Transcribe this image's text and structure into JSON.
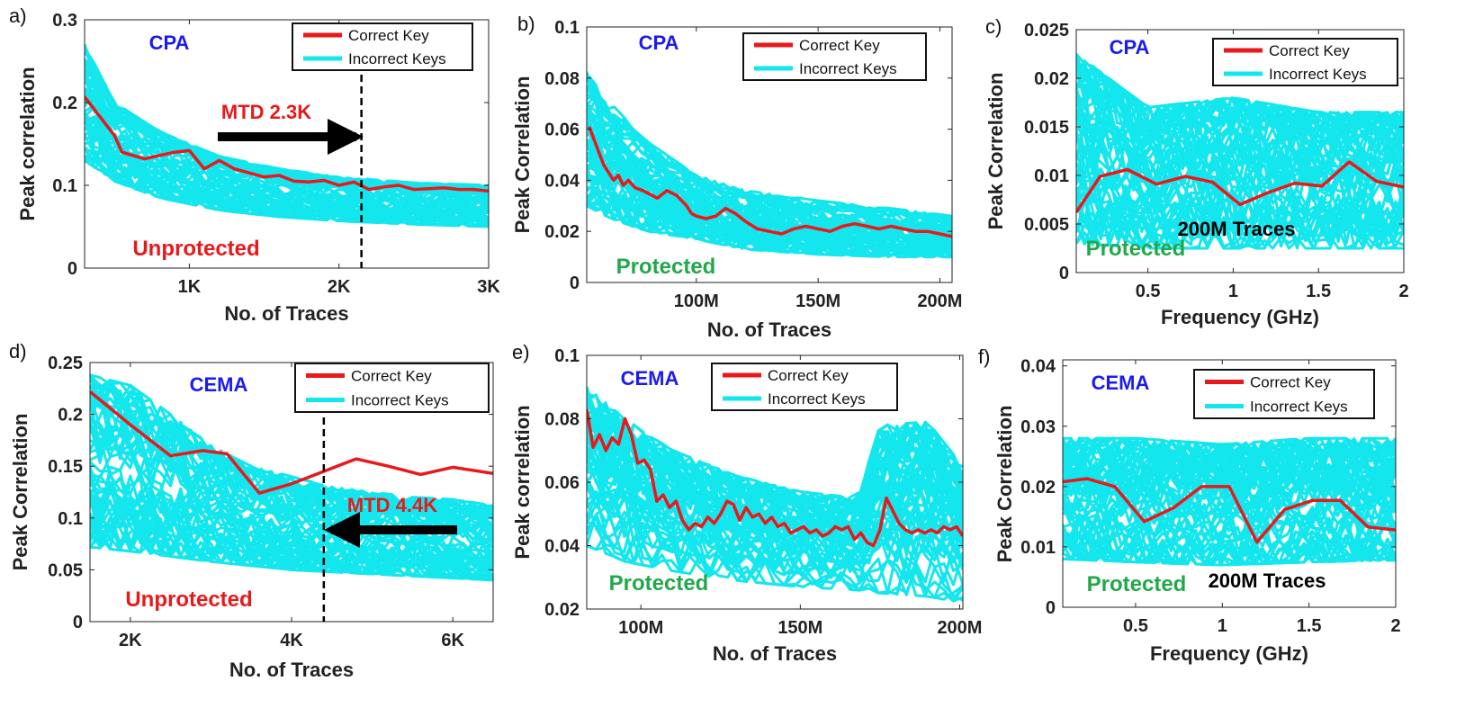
{
  "colors": {
    "correct": "#e8191b",
    "incorrect": "#14e6ee",
    "label_blue": "#1b1bf0",
    "label_red": "#e8191b",
    "label_green": "#21a84a",
    "arrow": "#000000"
  },
  "chart_data": [
    {
      "panel": "a)",
      "type": "line",
      "xlabel": "No. of Traces",
      "ylabel": "Peak correlation",
      "xlim": [
        300,
        3000
      ],
      "ylim": [
        0,
        0.3
      ],
      "xticks": [
        1000,
        2000,
        3000
      ],
      "xtick_labels": [
        "1K",
        "2K",
        "3K"
      ],
      "yticks": [
        0,
        0.1,
        0.2,
        0.3
      ],
      "ytick_labels": [
        "0",
        "0.1",
        "0.2",
        "0.3"
      ],
      "method": "CPA",
      "status": "Unprotected",
      "mtd_label": "MTD 2.3K",
      "mtd_x": 2150,
      "arrow_dir": "right",
      "legend": [
        "Correct Key",
        "Incorrect Keys"
      ],
      "band": {
        "x": [
          300,
          500,
          800,
          1200,
          1600,
          2000,
          2500,
          3000
        ],
        "lower": [
          0.13,
          0.105,
          0.085,
          0.07,
          0.062,
          0.057,
          0.053,
          0.05
        ],
        "upper": [
          0.27,
          0.2,
          0.165,
          0.135,
          0.12,
          0.11,
          0.103,
          0.1
        ]
      },
      "correct": {
        "x": [
          300,
          500,
          550,
          700,
          900,
          1000,
          1100,
          1200,
          1300,
          1400,
          1500,
          1600,
          1700,
          1800,
          1900,
          2000,
          2100,
          2200,
          2300,
          2400,
          2500,
          2600,
          2700,
          2800,
          2900,
          3000
        ],
        "y": [
          0.207,
          0.16,
          0.14,
          0.132,
          0.14,
          0.142,
          0.12,
          0.13,
          0.12,
          0.115,
          0.11,
          0.112,
          0.105,
          0.104,
          0.106,
          0.1,
          0.104,
          0.095,
          0.098,
          0.1,
          0.095,
          0.096,
          0.097,
          0.095,
          0.095,
          0.093
        ]
      }
    },
    {
      "panel": "b)",
      "type": "line",
      "xlabel": "No. of Traces",
      "ylabel": "Peak Correlation",
      "xlim": [
        55,
        205
      ],
      "ylim": [
        0,
        0.1
      ],
      "xticks": [
        100,
        150,
        200
      ],
      "xtick_labels": [
        "100M",
        "150M",
        "200M"
      ],
      "yticks": [
        0,
        0.02,
        0.04,
        0.06,
        0.08,
        0.1
      ],
      "ytick_labels": [
        "0",
        "0.02",
        "0.04",
        "0.06",
        "0.08",
        "0.1"
      ],
      "method": "CPA",
      "status": "Protected",
      "legend": [
        "Correct Key",
        "Incorrect Keys"
      ],
      "band": {
        "x": [
          55,
          65,
          80,
          100,
          120,
          150,
          180,
          205
        ],
        "lower": [
          0.03,
          0.025,
          0.02,
          0.017,
          0.013,
          0.011,
          0.01,
          0.01
        ],
        "upper": [
          0.083,
          0.07,
          0.055,
          0.042,
          0.036,
          0.032,
          0.029,
          0.026
        ]
      },
      "correct": {
        "x": [
          56,
          58,
          60,
          62,
          64,
          66,
          68,
          70,
          72,
          75,
          78,
          80,
          84,
          88,
          92,
          96,
          98,
          100,
          104,
          108,
          112,
          116,
          120,
          125,
          130,
          135,
          140,
          145,
          150,
          155,
          160,
          165,
          170,
          175,
          180,
          185,
          190,
          195,
          200,
          205
        ],
        "y": [
          0.061,
          0.056,
          0.051,
          0.046,
          0.043,
          0.04,
          0.042,
          0.038,
          0.04,
          0.037,
          0.036,
          0.035,
          0.033,
          0.036,
          0.034,
          0.03,
          0.027,
          0.026,
          0.025,
          0.026,
          0.029,
          0.027,
          0.024,
          0.021,
          0.02,
          0.019,
          0.021,
          0.022,
          0.021,
          0.02,
          0.022,
          0.023,
          0.022,
          0.021,
          0.022,
          0.021,
          0.02,
          0.02,
          0.019,
          0.018
        ]
      }
    },
    {
      "panel": "c)",
      "type": "line",
      "xlabel": "Frequency (GHz)",
      "ylabel": "Peak Correlation",
      "xlim": [
        0.08,
        2
      ],
      "ylim": [
        0,
        0.025
      ],
      "xticks": [
        0.5,
        1,
        1.5,
        2
      ],
      "xtick_labels": [
        "0.5",
        "1",
        "1.5",
        "2"
      ],
      "yticks": [
        0,
        0.005,
        0.01,
        0.015,
        0.02,
        0.025
      ],
      "ytick_labels": [
        "0",
        "0.005",
        "0.01",
        "0.015",
        "0.02",
        "0.025"
      ],
      "method": "CPA",
      "status": "Protected",
      "traces_label": "200M Traces",
      "legend": [
        "Correct Key",
        "Incorrect Keys"
      ],
      "band": {
        "x": [
          0.08,
          0.5,
          1,
          1.5,
          2
        ],
        "lower": [
          0.003,
          0.0025,
          0.0025,
          0.0025,
          0.0025
        ],
        "upper": [
          0.0225,
          0.017,
          0.018,
          0.0165,
          0.0165
        ]
      },
      "correct": {
        "x": [
          0.08,
          0.22,
          0.38,
          0.55,
          0.72,
          0.88,
          1.04,
          1.2,
          1.36,
          1.52,
          1.68,
          1.84,
          2.0
        ],
        "y": [
          0.0062,
          0.0099,
          0.0106,
          0.0091,
          0.0099,
          0.0093,
          0.007,
          0.0082,
          0.0092,
          0.0089,
          0.0114,
          0.0094,
          0.0088
        ]
      }
    },
    {
      "panel": "d)",
      "type": "line",
      "xlabel": "No. of Traces",
      "ylabel": "Peak Correlation",
      "xlim": [
        1500,
        6500
      ],
      "ylim": [
        0,
        0.25
      ],
      "xticks": [
        2000,
        4000,
        6000
      ],
      "xtick_labels": [
        "2K",
        "4K",
        "6K"
      ],
      "yticks": [
        0,
        0.05,
        0.1,
        0.15,
        0.2,
        0.25
      ],
      "ytick_labels": [
        "0",
        "0.05",
        "0.1",
        "0.15",
        "0.2",
        "0.25"
      ],
      "method": "CEMA",
      "status": "Unprotected",
      "mtd_label": "MTD 4.4K",
      "mtd_x": 4400,
      "arrow_dir": "left",
      "legend": [
        "Correct Key",
        "Incorrect Keys"
      ],
      "band": {
        "x": [
          1500,
          2000,
          2500,
          3000,
          3500,
          4000,
          4500,
          5000,
          5500,
          6000,
          6500
        ],
        "lower": [
          0.072,
          0.068,
          0.063,
          0.058,
          0.054,
          0.05,
          0.048,
          0.046,
          0.044,
          0.042,
          0.04
        ],
        "upper": [
          0.238,
          0.228,
          0.2,
          0.17,
          0.15,
          0.14,
          0.13,
          0.125,
          0.12,
          0.118,
          0.112
        ]
      },
      "correct": {
        "x": [
          1500,
          2000,
          2500,
          2900,
          3200,
          3600,
          4000,
          4400,
          4800,
          5200,
          5600,
          6000,
          6500
        ],
        "y": [
          0.222,
          0.19,
          0.16,
          0.165,
          0.162,
          0.124,
          0.133,
          0.145,
          0.157,
          0.15,
          0.142,
          0.149,
          0.143
        ]
      }
    },
    {
      "panel": "e)",
      "type": "line",
      "xlabel": "No. of Traces",
      "ylabel": "Peak correlation",
      "xlim": [
        83,
        201
      ],
      "ylim": [
        0.02,
        0.1
      ],
      "xticks": [
        100,
        150,
        200
      ],
      "xtick_labels": [
        "100M",
        "150M",
        "200M"
      ],
      "yticks": [
        0.02,
        0.04,
        0.06,
        0.08,
        0.1
      ],
      "ytick_labels": [
        "0.02",
        "0.04",
        "0.06",
        "0.08",
        "0.1"
      ],
      "method": "CEMA",
      "status": "Protected",
      "legend": [
        "Correct Key",
        "Incorrect Keys"
      ],
      "band": {
        "x": [
          83,
          95,
          110,
          130,
          150,
          168,
          175,
          190,
          201
        ],
        "lower": [
          0.04,
          0.035,
          0.032,
          0.029,
          0.027,
          0.026,
          0.025,
          0.024,
          0.022
        ],
        "upper": [
          0.09,
          0.08,
          0.07,
          0.062,
          0.057,
          0.055,
          0.078,
          0.079,
          0.065
        ]
      },
      "correct": {
        "x": [
          83,
          85,
          87,
          89,
          91,
          93,
          95,
          97,
          99,
          101,
          103,
          105,
          107,
          109,
          111,
          113,
          115,
          117,
          119,
          121,
          123,
          125,
          127,
          129,
          131,
          133,
          135,
          137,
          139,
          141,
          143,
          145,
          147,
          149,
          151,
          153,
          155,
          157,
          159,
          161,
          163,
          165,
          167,
          169,
          171,
          173,
          175,
          177,
          179,
          181,
          183,
          185,
          187,
          189,
          191,
          193,
          195,
          197,
          199,
          201
        ],
        "y": [
          0.083,
          0.071,
          0.075,
          0.07,
          0.074,
          0.072,
          0.08,
          0.075,
          0.066,
          0.067,
          0.064,
          0.054,
          0.056,
          0.052,
          0.054,
          0.048,
          0.045,
          0.047,
          0.046,
          0.049,
          0.047,
          0.05,
          0.054,
          0.053,
          0.048,
          0.052,
          0.049,
          0.05,
          0.047,
          0.049,
          0.046,
          0.047,
          0.044,
          0.045,
          0.046,
          0.044,
          0.045,
          0.043,
          0.044,
          0.046,
          0.045,
          0.046,
          0.042,
          0.044,
          0.041,
          0.04,
          0.045,
          0.055,
          0.051,
          0.047,
          0.045,
          0.044,
          0.045,
          0.044,
          0.045,
          0.044,
          0.046,
          0.045,
          0.046,
          0.043
        ]
      }
    },
    {
      "panel": "f)",
      "type": "line",
      "xlabel": "Frequency (GHz)",
      "ylabel": "Peak Correlation",
      "xlim": [
        0.08,
        2
      ],
      "ylim": [
        0,
        0.041
      ],
      "xticks": [
        0.5,
        1,
        1.5,
        2
      ],
      "xtick_labels": [
        "0.5",
        "1",
        "1.5",
        "2"
      ],
      "yticks": [
        0,
        0.01,
        0.02,
        0.03,
        0.04
      ],
      "ytick_labels": [
        "0",
        "0.01",
        "0.02",
        "0.03",
        "0.04"
      ],
      "method": "CEMA",
      "status": "Protected",
      "traces_label": "200M Traces",
      "legend": [
        "Correct Key",
        "Incorrect Keys"
      ],
      "band": {
        "x": [
          0.08,
          0.5,
          1,
          1.5,
          2
        ],
        "lower": [
          0.008,
          0.0075,
          0.007,
          0.0075,
          0.0078
        ],
        "upper": [
          0.028,
          0.028,
          0.027,
          0.028,
          0.028
        ]
      },
      "correct": {
        "x": [
          0.08,
          0.22,
          0.38,
          0.55,
          0.72,
          0.88,
          1.04,
          1.2,
          1.36,
          1.52,
          1.68,
          1.84,
          2.0
        ],
        "y": [
          0.0208,
          0.0213,
          0.02,
          0.0142,
          0.0165,
          0.02,
          0.02,
          0.0108,
          0.0162,
          0.0177,
          0.0177,
          0.0133,
          0.0128
        ]
      }
    }
  ]
}
